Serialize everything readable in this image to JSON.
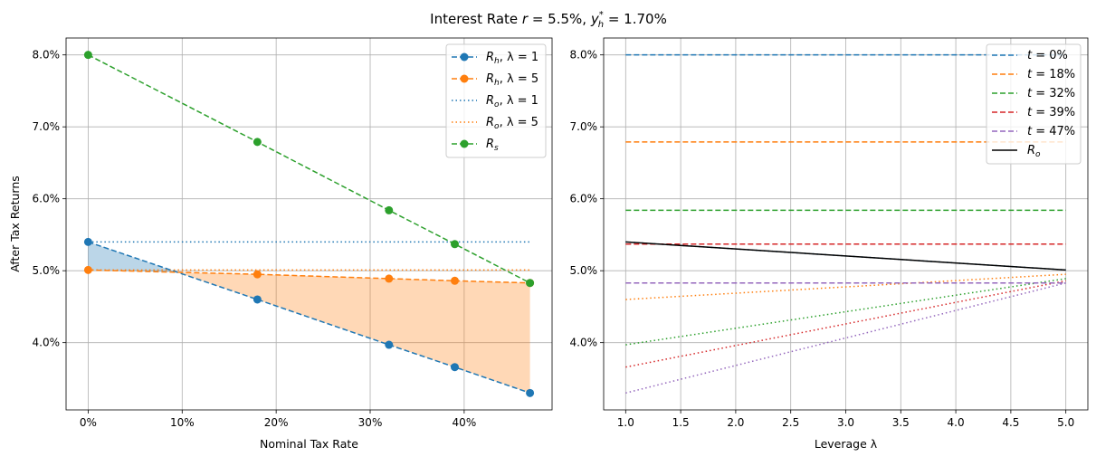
{
  "title": {
    "prefix": "Interest Rate ",
    "r": "r",
    "mid": " = 5.5%, ",
    "y": "y",
    "sup": "*",
    "sub": "h",
    "suffix": " = 1.70%"
  },
  "chart_data": [
    {
      "type": "line",
      "xlabel": "Nominal Tax Rate",
      "ylabel": "After Tax Returns",
      "x": [
        0,
        18,
        32,
        39,
        47
      ],
      "xlim": [
        -2.35,
        49.35
      ],
      "ylim": [
        3.065,
        8.235
      ],
      "xticks": [
        0,
        10,
        20,
        30,
        40
      ],
      "xtick_labels": [
        "0%",
        "10%",
        "20%",
        "30%",
        "40%"
      ],
      "yticks": [
        4,
        5,
        6,
        7,
        8
      ],
      "ytick_labels": [
        "4.0%",
        "5.0%",
        "6.0%",
        "7.0%",
        "8.0%"
      ],
      "grid": true,
      "legend_placement": "upper right",
      "series": [
        {
          "label": {
            "main": "R",
            "sub": "h",
            "suffix": ", λ = 1"
          },
          "color": "#1f77b4",
          "style": "dashed-marker",
          "values": [
            5.4,
            4.6,
            3.97,
            3.66,
            3.3
          ]
        },
        {
          "label": {
            "main": "R",
            "sub": "h",
            "suffix": ", λ = 5"
          },
          "color": "#ff7f0e",
          "style": "dashed-marker",
          "values": [
            5.01,
            4.95,
            4.89,
            4.86,
            4.83
          ]
        },
        {
          "label": {
            "main": "R",
            "sub": "o",
            "suffix": ", λ = 1"
          },
          "color": "#1f77b4",
          "style": "dotted",
          "values": [
            5.4,
            5.4,
            5.4,
            5.4,
            5.4
          ]
        },
        {
          "label": {
            "main": "R",
            "sub": "o",
            "suffix": ", λ = 5"
          },
          "color": "#ff7f0e",
          "style": "dotted",
          "values": [
            5.01,
            5.01,
            5.01,
            5.01,
            5.01
          ]
        },
        {
          "label": {
            "main": "R",
            "sub": "s",
            "suffix": ""
          },
          "color": "#2ca02c",
          "style": "dashed-marker",
          "values": [
            8.0,
            6.79,
            5.84,
            5.37,
            4.83
          ]
        }
      ],
      "fills": [
        {
          "between": [
            "R_h λ=1",
            "R_h λ=5"
          ],
          "where": "λ=1 above",
          "color": "#1f77b4",
          "alpha": 0.3
        },
        {
          "between": [
            "R_h λ=1",
            "R_h λ=5"
          ],
          "where": "λ=5 above",
          "color": "#ff7f0e",
          "alpha": 0.3
        }
      ]
    },
    {
      "type": "line",
      "xlabel": "Leverage λ",
      "x": [
        1,
        5
      ],
      "xlim": [
        0.8,
        5.2
      ],
      "ylim": [
        3.065,
        8.235
      ],
      "xticks": [
        1.0,
        1.5,
        2.0,
        2.5,
        3.0,
        3.5,
        4.0,
        4.5,
        5.0
      ],
      "xtick_labels": [
        "1.0",
        "1.5",
        "2.0",
        "2.5",
        "3.0",
        "3.5",
        "4.0",
        "4.5",
        "5.0"
      ],
      "yticks": [
        4,
        5,
        6,
        7,
        8
      ],
      "ytick_labels": [
        "4.0%",
        "5.0%",
        "6.0%",
        "7.0%",
        "8.0%"
      ],
      "grid": true,
      "legend_placement": "upper right",
      "series": [
        {
          "label": {
            "main": "t",
            "sub": "",
            "suffix": " = 0%"
          },
          "color": "#1f77b4",
          "dashed": [
            8.0,
            8.0
          ],
          "dotted": [
            5.4,
            5.01
          ]
        },
        {
          "label": {
            "main": "t",
            "sub": "",
            "suffix": " = 18%"
          },
          "color": "#ff7f0e",
          "dashed": [
            6.79,
            6.79
          ],
          "dotted": [
            4.6,
            4.95
          ]
        },
        {
          "label": {
            "main": "t",
            "sub": "",
            "suffix": " = 32%"
          },
          "color": "#2ca02c",
          "dashed": [
            5.84,
            5.84
          ],
          "dotted": [
            3.97,
            4.89
          ]
        },
        {
          "label": {
            "main": "t",
            "sub": "",
            "suffix": " = 39%"
          },
          "color": "#d62728",
          "dashed": [
            5.37,
            5.37
          ],
          "dotted": [
            3.66,
            4.86
          ]
        },
        {
          "label": {
            "main": "t",
            "sub": "",
            "suffix": " = 47%"
          },
          "color": "#9467bd",
          "dashed": [
            4.83,
            4.83
          ],
          "dotted": [
            3.3,
            4.83
          ]
        },
        {
          "label": {
            "main": "R",
            "sub": "o",
            "suffix": ""
          },
          "color": "#000000",
          "solid": [
            5.4,
            5.01
          ]
        }
      ]
    }
  ]
}
